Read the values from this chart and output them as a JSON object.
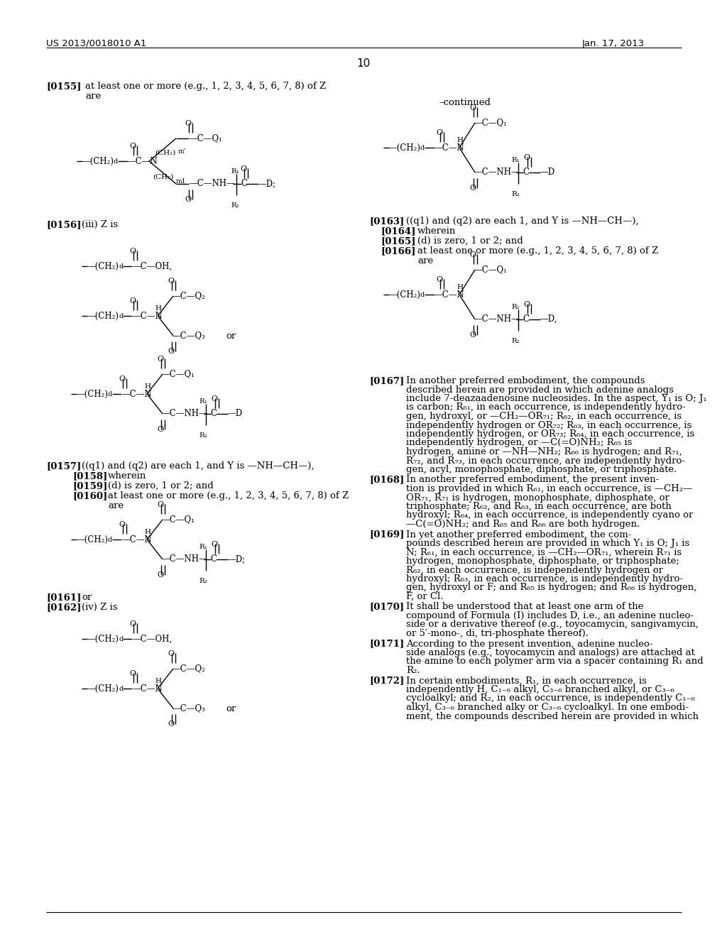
{
  "bg_color": "#ffffff",
  "header_left": "US 2013/0018010 A1",
  "header_right": "Jan. 17, 2013",
  "page_number": "10"
}
